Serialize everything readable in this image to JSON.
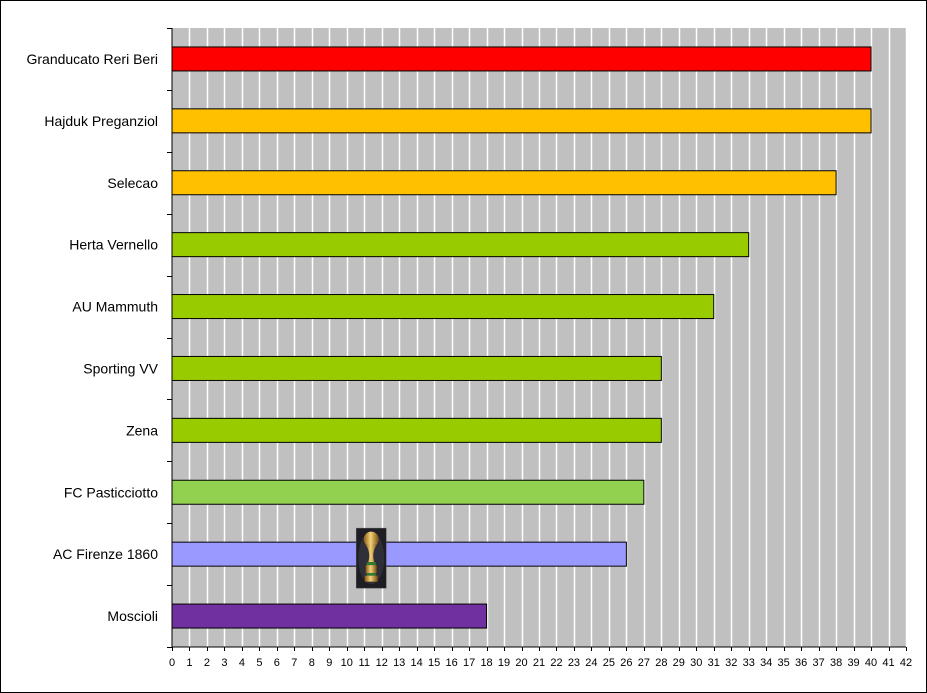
{
  "chart_data": {
    "type": "bar",
    "orientation": "horizontal",
    "categories": [
      "Granducato Reri Beri",
      "Hajduk Preganziol",
      "Selecao",
      "Herta Vernello",
      "AU Mammuth",
      "Sporting VV",
      "Zena",
      "FC Pasticciotto",
      "AC Firenze 1860",
      "Moscioli"
    ],
    "values": [
      40,
      40,
      38,
      33,
      31,
      28,
      28,
      27,
      26,
      18
    ],
    "bar_colors": [
      "#ff0000",
      "#ffc000",
      "#ffc000",
      "#99cc00",
      "#99cc00",
      "#99cc00",
      "#99cc00",
      "#92d050",
      "#9999ff",
      "#7030a0"
    ],
    "xlim": [
      0,
      42
    ],
    "xticks": [
      "0",
      "1",
      "2",
      "3",
      "4",
      "5",
      "6",
      "7",
      "8",
      "9",
      "10",
      "11",
      "12",
      "13",
      "14",
      "15",
      "16",
      "17",
      "18",
      "19",
      "20",
      "21",
      "22",
      "23",
      "24",
      "25",
      "26",
      "27",
      "28",
      "29",
      "30",
      "31",
      "32",
      "33",
      "34",
      "35",
      "36",
      "37",
      "38",
      "39",
      "40",
      "41",
      "42"
    ],
    "grid": true,
    "plot_background": "#c0c0c0",
    "gridline_color": "#ffffff",
    "title": "",
    "xlabel": "",
    "ylabel": "",
    "annotations": [
      {
        "type": "trophy-icon",
        "category": "AC Firenze 1860",
        "x": 11.4
      }
    ]
  }
}
